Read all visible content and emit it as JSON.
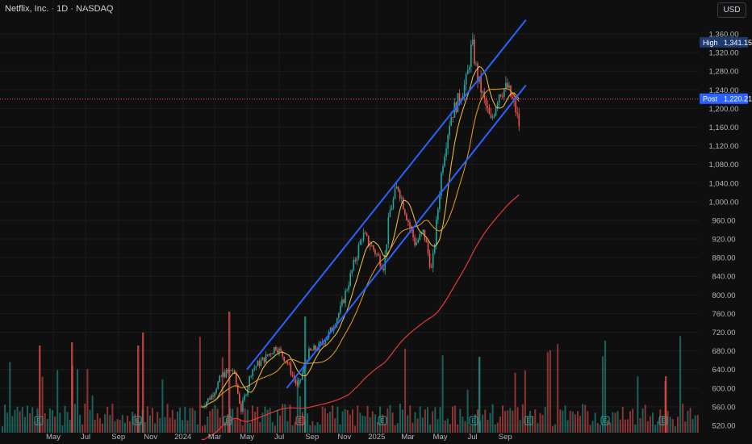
{
  "header": {
    "title": "Netflix, Inc. · 1D · NASDAQ",
    "currency": "USD"
  },
  "colors": {
    "up": "#26a69a",
    "down": "#ef5350",
    "channel": "#2962ff",
    "ma_short": "#f5c842",
    "ma_mid": "#e8a020",
    "ma_long": "#e53935",
    "high_label": "#1e3a6e",
    "post_label": "#2962ff"
  },
  "icons": [
    "earnings-marker-icon"
  ],
  "chart_data": {
    "type": "candlestick",
    "y_axis": {
      "ticks": [
        520,
        560,
        600,
        640,
        680,
        720,
        760,
        800,
        840,
        880,
        920,
        960,
        1000,
        1040,
        1080,
        1120,
        1160,
        1200,
        1240,
        1280,
        1320,
        1360
      ],
      "ylim": [
        507,
        1395
      ]
    },
    "x_axis": {
      "labels": [
        "May",
        "Jul",
        "Sep",
        "Nov",
        "2024",
        "Mar",
        "May",
        "Jul",
        "Sep",
        "Nov",
        "2025",
        "Mar",
        "May",
        "Jul",
        "Sep"
      ]
    },
    "high": {
      "label": "High",
      "value": "1,341.15"
    },
    "post": {
      "label": "Post",
      "value": "1,220.21"
    },
    "price_path": [
      [
        "2024-02-05",
        560
      ],
      [
        "2024-02-25",
        585
      ],
      [
        "2024-03-15",
        628
      ],
      [
        "2024-04-05",
        640
      ],
      [
        "2024-04-20",
        553
      ],
      [
        "2024-05-10",
        640
      ],
      [
        "2024-06-05",
        665
      ],
      [
        "2024-06-25",
        690
      ],
      [
        "2024-07-15",
        658
      ],
      [
        "2024-08-05",
        600
      ],
      [
        "2024-08-25",
        675
      ],
      [
        "2024-09-15",
        690
      ],
      [
        "2024-10-05",
        720
      ],
      [
        "2024-10-25",
        770
      ],
      [
        "2024-11-15",
        850
      ],
      [
        "2024-12-05",
        930
      ],
      [
        "2024-12-25",
        900
      ],
      [
        "2025-01-15",
        860
      ],
      [
        "2025-01-25",
        975
      ],
      [
        "2025-02-10",
        1035
      ],
      [
        "2025-02-28",
        965
      ],
      [
        "2025-03-15",
        910
      ],
      [
        "2025-03-31",
        935
      ],
      [
        "2025-04-15",
        850
      ],
      [
        "2025-05-05",
        1080
      ],
      [
        "2025-05-20",
        1180
      ],
      [
        "2025-06-05",
        1220
      ],
      [
        "2025-06-20",
        1260
      ],
      [
        "2025-06-30",
        1341
      ],
      [
        "2025-07-10",
        1270
      ],
      [
        "2025-07-22",
        1220
      ],
      [
        "2025-08-05",
        1170
      ],
      [
        "2025-08-20",
        1235
      ],
      [
        "2025-09-05",
        1245
      ],
      [
        "2025-09-20",
        1200
      ],
      [
        "2025-09-30",
        1150
      ]
    ],
    "channel_upper": [
      [
        "2024-05-01",
        640
      ],
      [
        "2025-10-10",
        1390
      ]
    ],
    "channel_lower": [
      [
        "2024-07-15",
        600
      ],
      [
        "2025-10-10",
        1250
      ]
    ]
  }
}
